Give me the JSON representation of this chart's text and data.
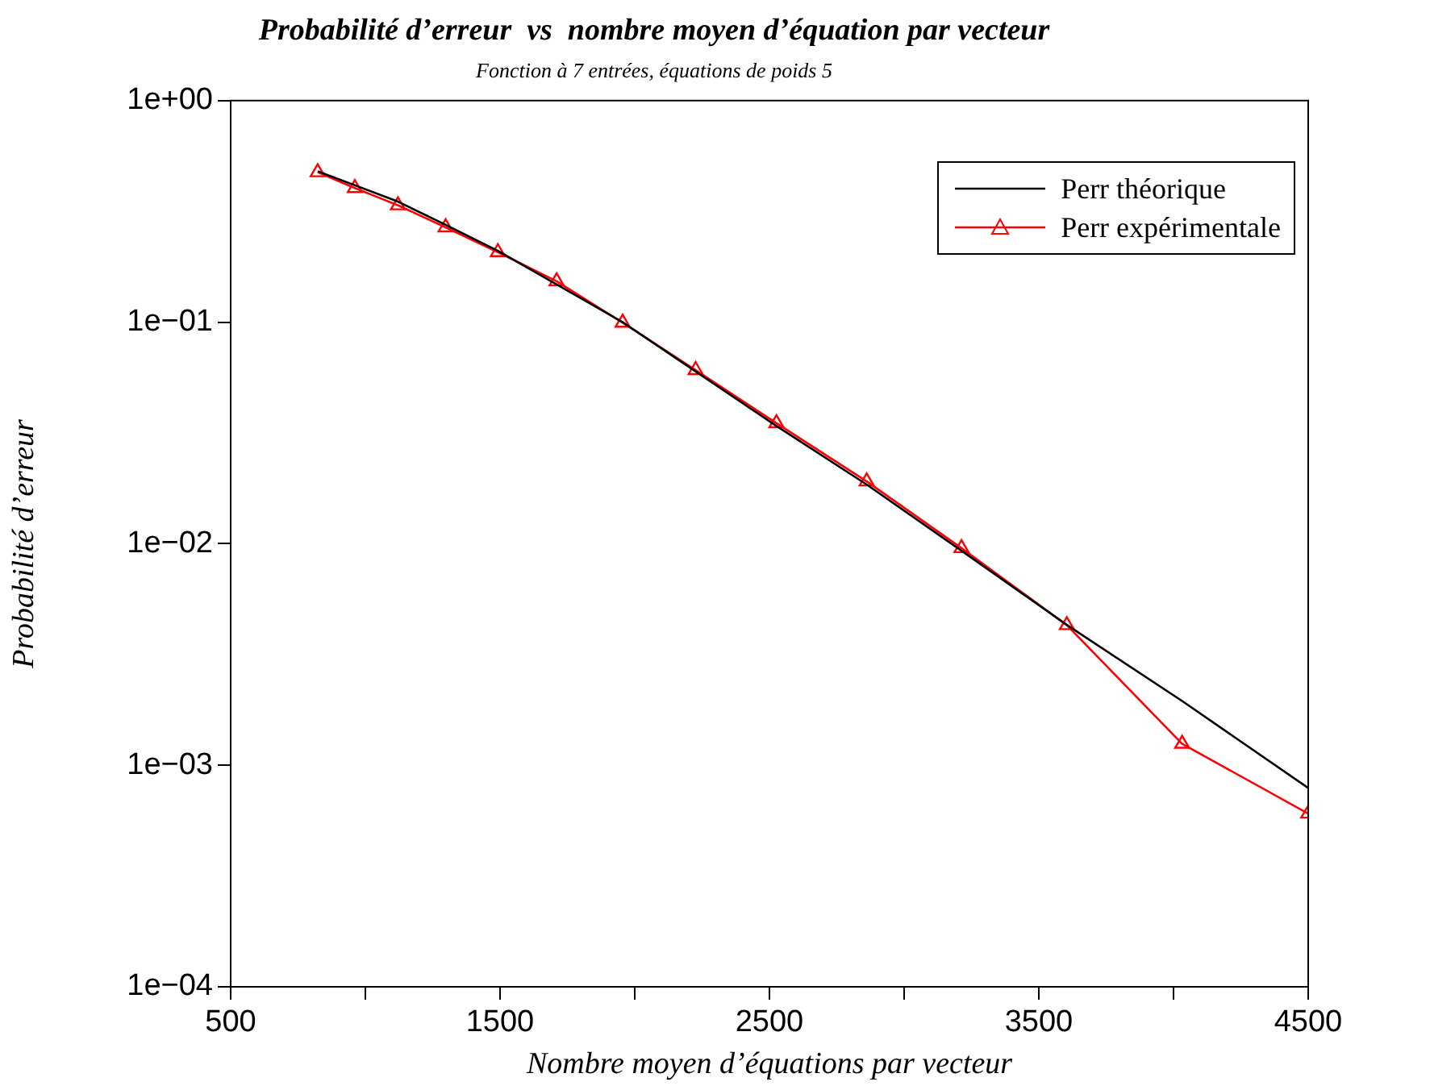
{
  "chart_data": {
    "type": "line",
    "title": "Probabilité d’erreur  vs  nombre moyen d’équation par vecteur",
    "subtitle": "Fonction à 7 entrées, équations de poids 5",
    "xlabel": "Nombre moyen d’équations par vecteur",
    "ylabel": "Probabilité d’erreur",
    "log": "y",
    "xlim": [
      500,
      4500
    ],
    "ylim": [
      0.0001,
      1
    ],
    "xticks": [
      500,
      {
        "value": 1000,
        "label": null
      },
      1500,
      {
        "value": 2000,
        "label": null
      },
      2500,
      {
        "value": 3000,
        "label": null
      },
      3500,
      {
        "value": 4000,
        "label": null
      },
      4500
    ],
    "yticks": [
      {
        "value": 0.0001,
        "label": "1e−04"
      },
      {
        "value": 0.001,
        "label": "1e−03"
      },
      {
        "value": 0.01,
        "label": "1e−02"
      },
      {
        "value": 0.1,
        "label": "1e−01"
      },
      {
        "value": 1,
        "label": "1e+00"
      }
    ],
    "grid": false,
    "legend": "top right",
    "series": [
      {
        "name": "Perr théorique",
        "color": "#000000",
        "marker": "none",
        "x": [
          823,
          1121,
          1298,
          1492,
          1955,
          2526,
          2861,
          3213,
          3604,
          4032,
          4500
        ],
        "values": [
          0.48,
          0.35,
          0.275,
          0.21,
          0.1,
          0.034,
          0.0185,
          0.0093,
          0.0043,
          0.00195,
          0.00079
        ]
      },
      {
        "name": "Perr expérimentale",
        "color": "#ff0000",
        "marker": "triangle",
        "x": [
          823,
          961,
          1121,
          1298,
          1492,
          1710,
          1955,
          2226,
          2526,
          2861,
          3213,
          3604,
          4032,
          4500
        ],
        "values": [
          0.475,
          0.403,
          0.337,
          0.268,
          0.207,
          0.153,
          0.0995,
          0.0608,
          0.035,
          0.0191,
          0.00955,
          0.00429,
          0.00125,
          0.000605
        ]
      }
    ]
  }
}
